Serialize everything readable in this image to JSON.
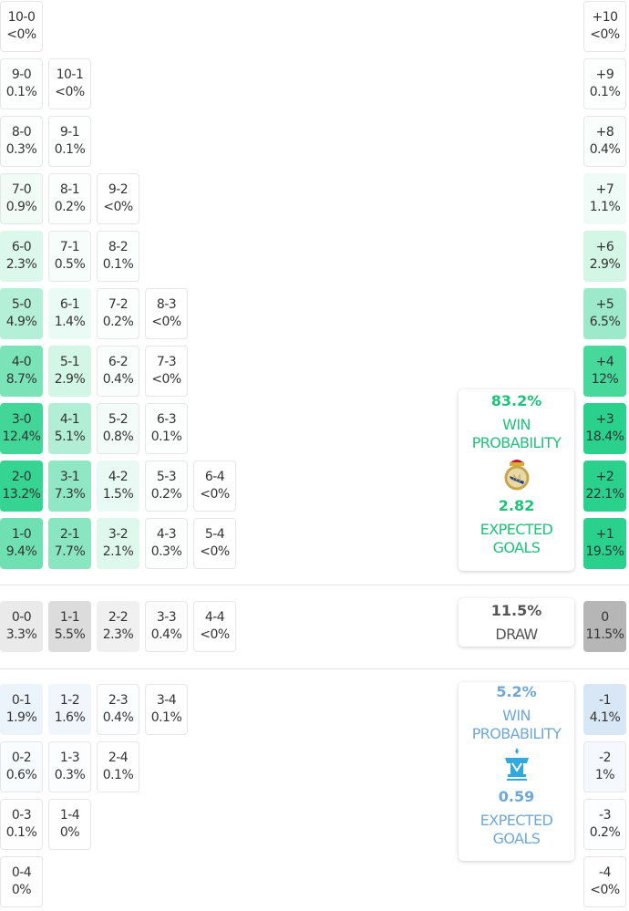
{
  "colors": {
    "home": "#1ec27a",
    "away": "#6fa8d8",
    "draw": "#555555"
  },
  "home_rows": [
    [
      [
        "10-0",
        "<0%"
      ]
    ],
    [
      [
        "9-0",
        "0.1%"
      ],
      [
        "10-1",
        "<0%"
      ]
    ],
    [
      [
        "8-0",
        "0.3%"
      ],
      [
        "9-1",
        "0.1%"
      ]
    ],
    [
      [
        "7-0",
        "0.9%"
      ],
      [
        "8-1",
        "0.2%"
      ],
      [
        "9-2",
        "<0%"
      ]
    ],
    [
      [
        "6-0",
        "2.3%"
      ],
      [
        "7-1",
        "0.5%"
      ],
      [
        "8-2",
        "0.1%"
      ]
    ],
    [
      [
        "5-0",
        "4.9%"
      ],
      [
        "6-1",
        "1.4%"
      ],
      [
        "7-2",
        "0.2%"
      ],
      [
        "8-3",
        "<0%"
      ]
    ],
    [
      [
        "4-0",
        "8.7%"
      ],
      [
        "5-1",
        "2.9%"
      ],
      [
        "6-2",
        "0.4%"
      ],
      [
        "7-3",
        "<0%"
      ]
    ],
    [
      [
        "3-0",
        "12.4%"
      ],
      [
        "4-1",
        "5.1%"
      ],
      [
        "5-2",
        "0.8%"
      ],
      [
        "6-3",
        "0.1%"
      ]
    ],
    [
      [
        "2-0",
        "13.2%"
      ],
      [
        "3-1",
        "7.3%"
      ],
      [
        "4-2",
        "1.5%"
      ],
      [
        "5-3",
        "0.2%"
      ],
      [
        "6-4",
        "<0%"
      ]
    ],
    [
      [
        "1-0",
        "9.4%"
      ],
      [
        "2-1",
        "7.7%"
      ],
      [
        "3-2",
        "2.1%"
      ],
      [
        "4-3",
        "0.3%"
      ],
      [
        "5-4",
        "<0%"
      ]
    ]
  ],
  "home_margins": [
    [
      "+10",
      "<0%"
    ],
    [
      "+9",
      "0.1%"
    ],
    [
      "+8",
      "0.4%"
    ],
    [
      "+7",
      "1.1%"
    ],
    [
      "+6",
      "2.9%"
    ],
    [
      "+5",
      "6.5%"
    ],
    [
      "+4",
      "12%"
    ],
    [
      "+3",
      "18.4%"
    ],
    [
      "+2",
      "22.1%"
    ],
    [
      "+1",
      "19.5%"
    ]
  ],
  "draw_row": [
    [
      "0-0",
      "3.3%"
    ],
    [
      "1-1",
      "5.5%"
    ],
    [
      "2-2",
      "2.3%"
    ],
    [
      "3-3",
      "0.4%"
    ],
    [
      "4-4",
      "<0%"
    ]
  ],
  "draw_margin": [
    "0",
    "11.5%"
  ],
  "away_rows": [
    [
      [
        "0-1",
        "1.9%"
      ],
      [
        "1-2",
        "1.6%"
      ],
      [
        "2-3",
        "0.4%"
      ],
      [
        "3-4",
        "0.1%"
      ]
    ],
    [
      [
        "0-2",
        "0.6%"
      ],
      [
        "1-3",
        "0.3%"
      ],
      [
        "2-4",
        "0.1%"
      ]
    ],
    [
      [
        "0-3",
        "0.1%"
      ],
      [
        "1-4",
        "0%"
      ]
    ],
    [
      [
        "0-4",
        "0%"
      ]
    ]
  ],
  "away_margins": [
    [
      "-1",
      "4.1%"
    ],
    [
      "-2",
      "1%"
    ],
    [
      "-3",
      "0.2%"
    ],
    [
      "-4",
      "<0%"
    ]
  ],
  "home_panel": {
    "win_pct": "83.2%",
    "win_label_1": "WIN",
    "win_label_2": "PROBABILITY",
    "xg": "2.82",
    "xg_label_1": "EXPECTED",
    "xg_label_2": "GOALS",
    "crest_icon": "real-madrid-crest-icon"
  },
  "draw_panel": {
    "pct": "11.5%",
    "label": "DRAW"
  },
  "away_panel": {
    "win_pct": "5.2%",
    "win_label_1": "WIN",
    "win_label_2": "PROBABILITY",
    "xg": "0.59",
    "xg_label_1": "EXPECTED",
    "xg_label_2": "GOALS",
    "crest_icon": "marseille-crest-icon"
  }
}
